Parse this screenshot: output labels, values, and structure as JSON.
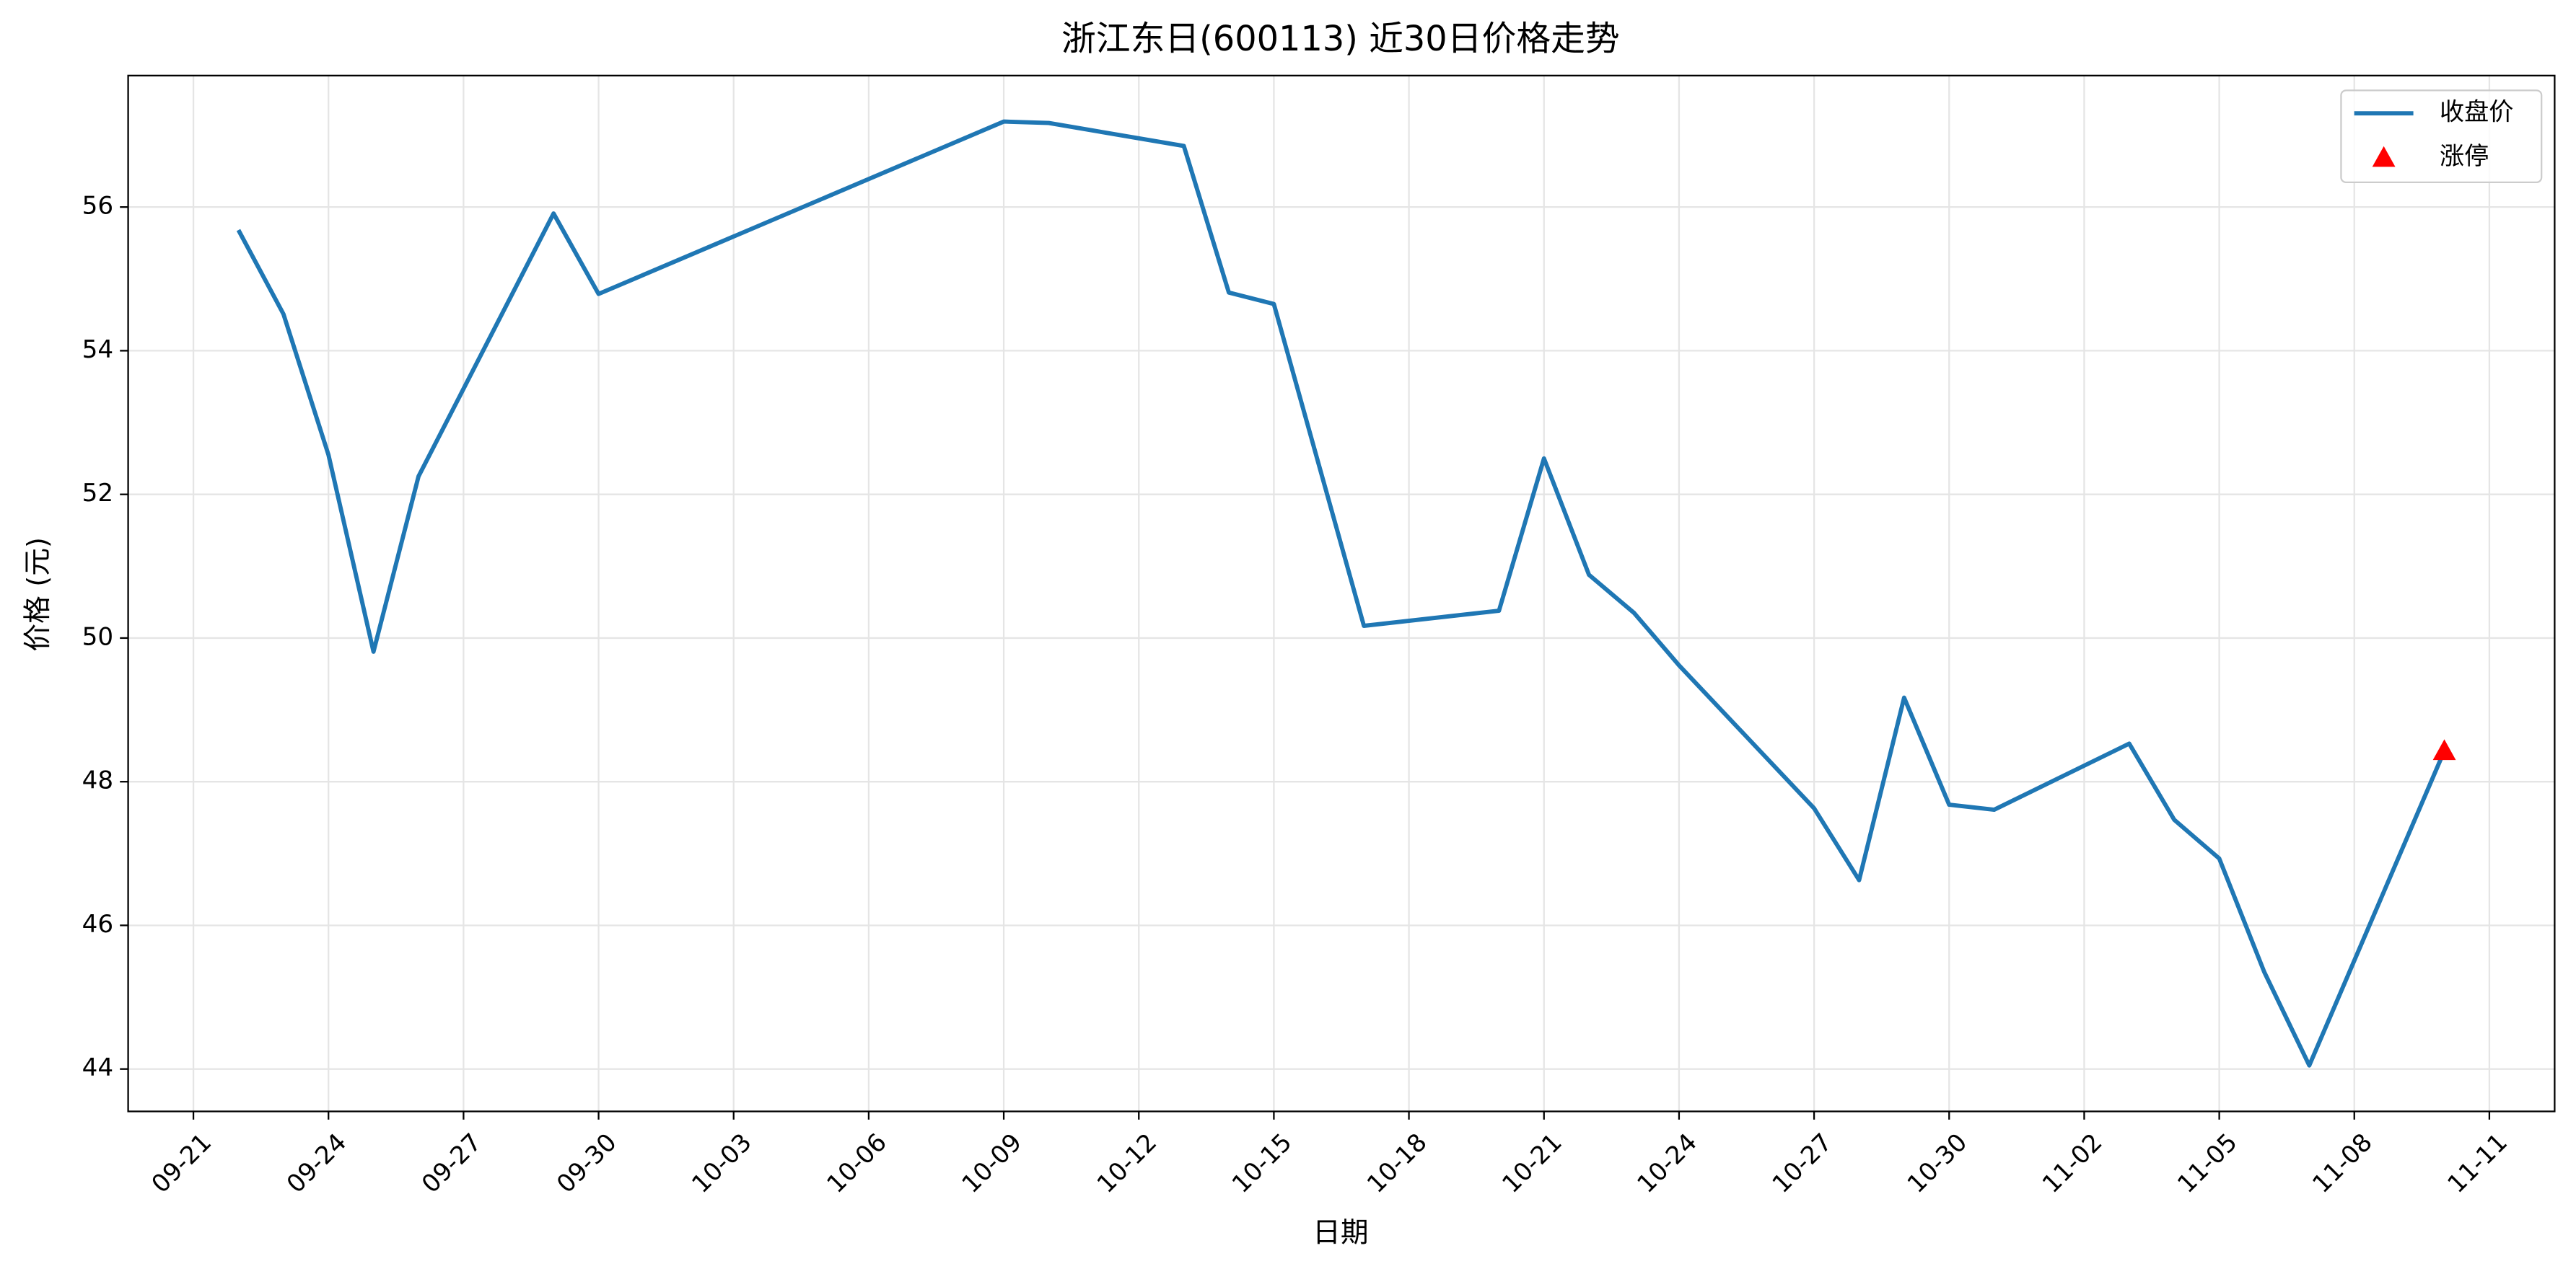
{
  "chart_data": {
    "type": "line",
    "title": "浙江东日(600113) 近30日价格走势",
    "x_label": "日期",
    "y_label": "价格 (元)",
    "series": [
      {
        "name": "收盘价",
        "color": "#1f77b4",
        "style": "line",
        "x": [
          "09-22",
          "09-23",
          "09-24",
          "09-25",
          "09-26",
          "09-29",
          "09-30",
          "10-09",
          "10-10",
          "10-13",
          "10-14",
          "10-15",
          "10-17",
          "10-20",
          "10-21",
          "10-22",
          "10-23",
          "10-24",
          "10-27",
          "10-28",
          "10-29",
          "10-30",
          "10-31",
          "11-03",
          "11-04",
          "11-05",
          "11-06",
          "11-07",
          "11-10"
        ],
        "values": [
          55.68,
          54.51,
          52.55,
          49.81,
          52.25,
          55.91,
          54.79,
          57.19,
          57.17,
          56.85,
          54.81,
          54.65,
          50.17,
          50.38,
          52.5,
          50.88,
          50.35,
          49.62,
          47.63,
          46.63,
          49.17,
          47.68,
          47.61,
          48.53,
          47.47,
          46.93,
          45.35,
          44.05,
          48.43
        ]
      },
      {
        "name": "涨停",
        "color": "#ff0000",
        "style": "triangle",
        "x": [
          "11-10"
        ],
        "values": [
          48.43
        ]
      }
    ],
    "xticks": [
      "09-21",
      "09-24",
      "09-27",
      "09-30",
      "10-03",
      "10-06",
      "10-09",
      "10-12",
      "10-15",
      "10-18",
      "10-21",
      "10-24",
      "10-27",
      "10-30",
      "11-02",
      "11-05",
      "11-08",
      "11-11"
    ],
    "ylim": [
      43.41,
      57.83
    ],
    "yticks": [
      44,
      46,
      48,
      50,
      52,
      54,
      56
    ],
    "grid": true,
    "legend": "upper right"
  }
}
